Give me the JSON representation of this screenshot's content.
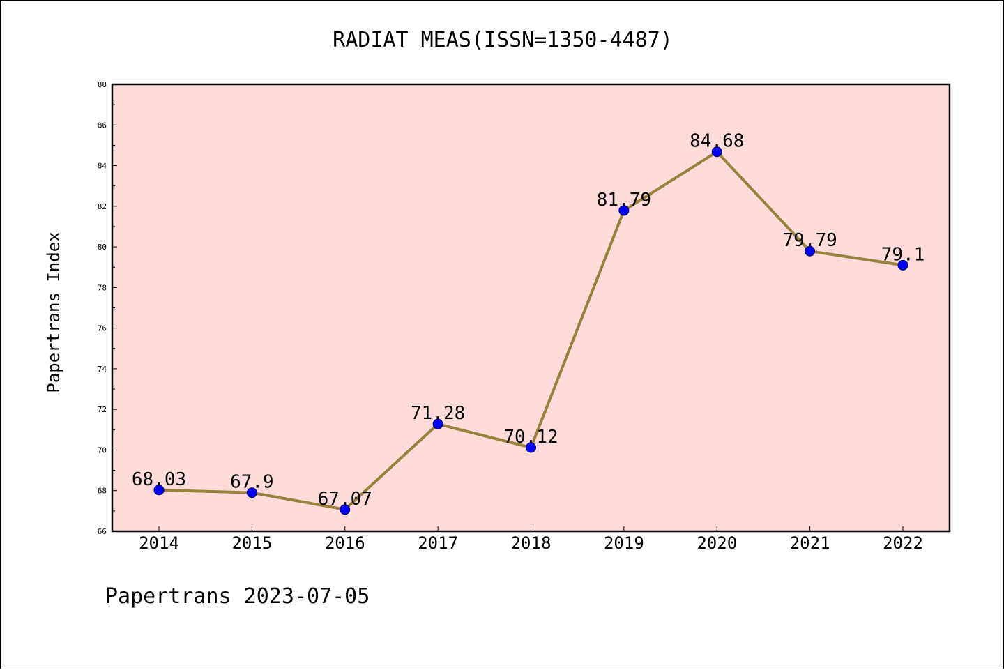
{
  "chart_data": {
    "type": "line",
    "title": "RADIAT MEAS(ISSN=1350-4487)",
    "xlabel": "",
    "ylabel": "Papertrans Index",
    "x": [
      "2014",
      "2015",
      "2016",
      "2017",
      "2018",
      "2019",
      "2020",
      "2021",
      "2022"
    ],
    "series": [
      {
        "values": [
          68.03,
          67.9,
          67.07,
          71.28,
          70.12,
          81.79,
          84.68,
          79.79,
          79.1
        ],
        "labels": [
          "68.03",
          "67.9",
          "67.07",
          "71.28",
          "70.12",
          "81.79",
          "84.68",
          "79.79",
          "79.1"
        ]
      }
    ],
    "ylim": [
      66,
      88
    ],
    "yticks": [
      "66",
      "68",
      "70",
      "72",
      "74",
      "76",
      "78",
      "80",
      "82",
      "84",
      "86",
      "88"
    ],
    "grid": false,
    "colors": {
      "plot_background": "#ffdcd9",
      "line": "#9b7f3a",
      "marker": "#0000ff"
    }
  },
  "footer": "Papertrans 2023-07-05"
}
